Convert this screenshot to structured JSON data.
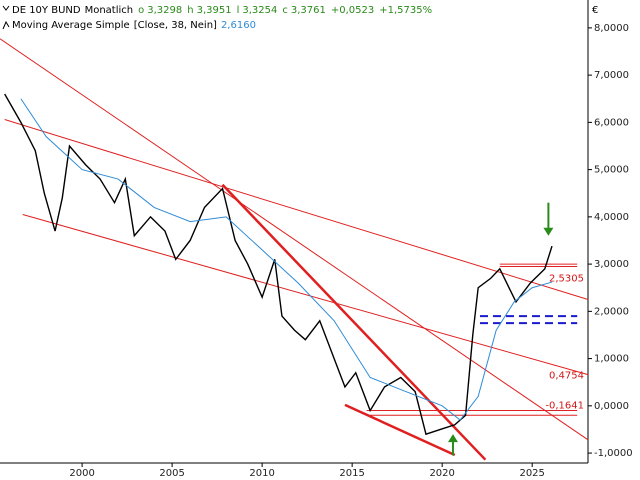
{
  "chart_data": {
    "type": "line",
    "header": {
      "name": "DE 10Y BUND",
      "period": "Monatlich",
      "quotes": [
        {
          "key": "o",
          "value": "3,3298"
        },
        {
          "key": "h",
          "value": "3,3951"
        },
        {
          "key": "l",
          "value": "3,3254"
        },
        {
          "key": "c",
          "value": "3,3761"
        }
      ],
      "change": "+0,0523",
      "change_pct": "+1,5735%",
      "indicator": "Moving Average Simple",
      "indicator_params": "[Close, 38, Nein]",
      "indicator_value": "2,6160"
    },
    "currency": "€",
    "xlim": [
      1995.44,
      2028.1
    ],
    "xticks": [
      2000,
      2005,
      2010,
      2015,
      2020,
      2025
    ],
    "ylim": [
      -1.21,
      8.59
    ],
    "yticks": [
      {
        "value": -1,
        "label": "-1,0000"
      },
      {
        "value": 0,
        "label": "0,0000"
      },
      {
        "value": 1,
        "label": "1,0000"
      },
      {
        "value": 2,
        "label": "2,0000"
      },
      {
        "value": 3,
        "label": "3,0000"
      },
      {
        "value": 4,
        "label": "4,0000"
      },
      {
        "value": 5,
        "label": "5,0000"
      },
      {
        "value": 6,
        "label": "6,0000"
      },
      {
        "value": 7,
        "label": "7,0000"
      },
      {
        "value": 8,
        "label": "8,0000"
      }
    ],
    "series": [
      {
        "name": "DE 10Y BUND",
        "color": "#000000",
        "x": [
          1995.7,
          1996.6,
          1997.4,
          1997.9,
          1998.5,
          1998.9,
          1999.3,
          2000.2,
          2001,
          2001.8,
          2002.4,
          2002.9,
          2003.8,
          2004.6,
          2005.2,
          2006,
          2006.8,
          2007.8,
          2008.5,
          2009.2,
          2010,
          2010.7,
          2011.1,
          2011.8,
          2012.4,
          2013.2,
          2014.1,
          2014.6,
          2015.2,
          2016,
          2016.8,
          2017.7,
          2018.5,
          2019.1,
          2019.9,
          2020.7,
          2021.3,
          2021.7,
          2022,
          2022.7,
          2023.2,
          2024.1,
          2024.9,
          2025.7,
          2026.1
        ],
        "values": [
          6.6,
          6.0,
          5.4,
          4.5,
          3.7,
          4.4,
          5.5,
          5.1,
          4.8,
          4.3,
          4.8,
          3.6,
          4.0,
          3.7,
          3.1,
          3.5,
          4.2,
          4.6,
          3.5,
          3.0,
          2.3,
          3.1,
          1.9,
          1.6,
          1.4,
          1.8,
          0.9,
          0.4,
          0.7,
          -0.1,
          0.4,
          0.6,
          0.3,
          -0.6,
          -0.5,
          -0.4,
          -0.2,
          1.5,
          2.5,
          2.7,
          2.9,
          2.2,
          2.6,
          2.9,
          3.38
        ]
      },
      {
        "name": "Moving Average Simple",
        "color": "#2e8bd6",
        "x": [
          1996.6,
          1998,
          2000,
          2002,
          2004,
          2006,
          2008,
          2010,
          2012,
          2014,
          2016,
          2018,
          2020,
          2021,
          2022,
          2023,
          2024,
          2025,
          2026.1
        ],
        "values": [
          6.5,
          5.7,
          5.0,
          4.8,
          4.2,
          3.9,
          4.0,
          3.3,
          2.6,
          1.8,
          0.6,
          0.3,
          0.0,
          -0.3,
          0.2,
          1.6,
          2.2,
          2.5,
          2.62
        ]
      }
    ],
    "trendlines": [
      {
        "x": [
          1995.44,
          2028.1
        ],
        "y": [
          7.77,
          -0.72
        ],
        "color": "#e02020",
        "bold": false
      },
      {
        "x": [
          1995.7,
          2028.1
        ],
        "y": [
          6.06,
          2.25
        ],
        "color": "#e02020",
        "bold": false
      },
      {
        "x": [
          1996.7,
          2028.1
        ],
        "y": [
          4.05,
          0.66
        ],
        "color": "#e02020",
        "bold": false
      },
      {
        "x": [
          2007.8,
          2022.4
        ],
        "y": [
          4.68,
          -1.14
        ],
        "color": "#e02020",
        "bold": true
      },
      {
        "x": [
          2014.6,
          2020.7
        ],
        "y": [
          0.02,
          -1.04
        ],
        "color": "#e02020",
        "bold": true
      },
      {
        "x": [
          2023.2,
          2027.5
        ],
        "y": [
          3.0,
          3.0
        ],
        "color": "#e02020",
        "bold": false
      },
      {
        "x": [
          2023.2,
          2027.5
        ],
        "y": [
          2.95,
          2.95
        ],
        "color": "#e02020",
        "bold": false
      },
      {
        "x": [
          2015.8,
          2027.5
        ],
        "y": [
          -0.1,
          -0.1
        ],
        "color": "#e02020",
        "bold": false
      },
      {
        "x": [
          2015.8,
          2027.5
        ],
        "y": [
          -0.2,
          -0.2
        ],
        "color": "#e02020",
        "bold": false
      }
    ],
    "dashed_levels": [
      {
        "x": [
          2022.1,
          2027.5
        ],
        "y": 1.9,
        "color": "#1a1acc"
      },
      {
        "x": [
          2022.1,
          2027.5
        ],
        "y": 1.75,
        "color": "#1a1acc"
      }
    ],
    "levels": [
      {
        "value": 2.5305,
        "label": "2,5305"
      },
      {
        "value": 0.4754,
        "label": "0,4754"
      },
      {
        "value": -0.1641,
        "label": "-0,1641"
      }
    ],
    "arrows": [
      {
        "x": 2025.9,
        "y": [
          4.3,
          3.6
        ],
        "color": "#2a8a1a"
      },
      {
        "x": 2020.6,
        "y": [
          -1.05,
          -0.6
        ],
        "color": "#2a8a1a"
      }
    ]
  }
}
